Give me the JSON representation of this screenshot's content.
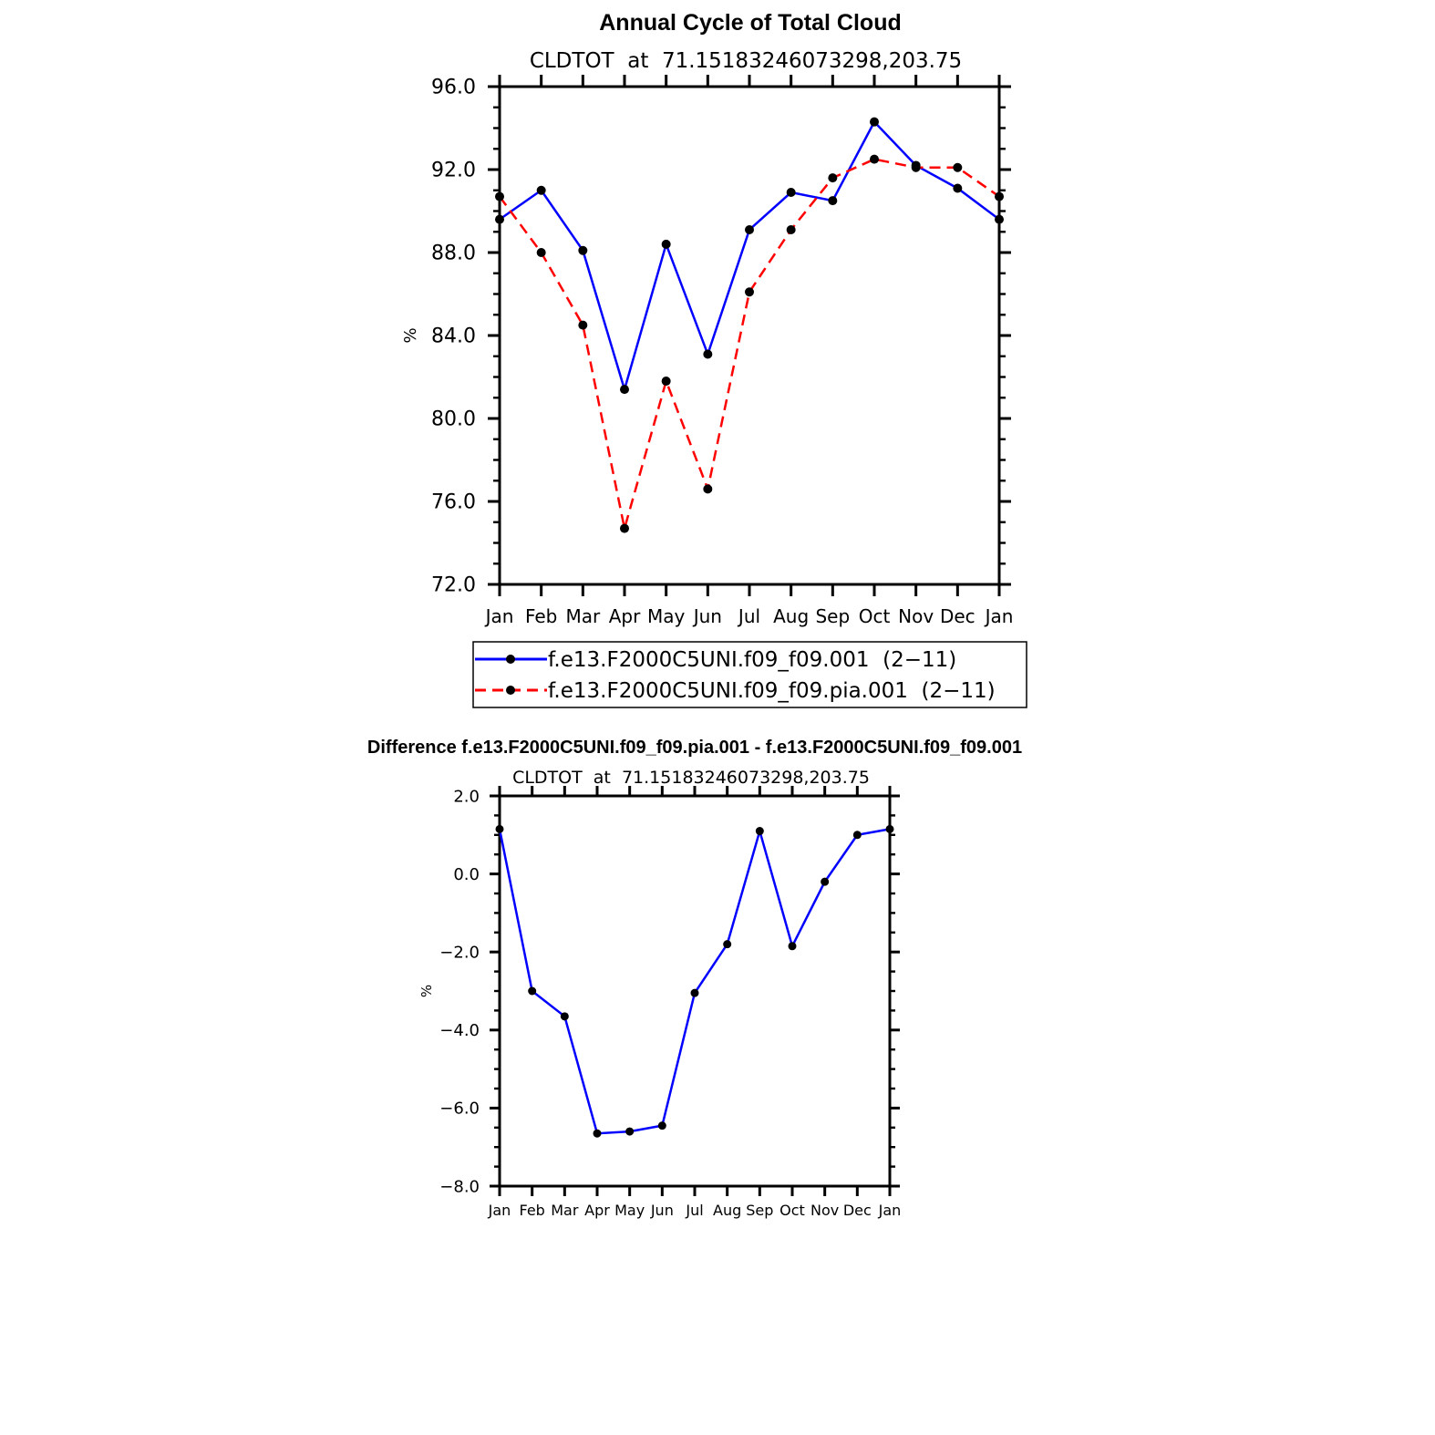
{
  "chart_data": [
    {
      "type": "line",
      "title": "Annual Cycle of Total Cloud",
      "subtitle": "CLDTOT  at  71.15183246073298,203.75",
      "xlabel": "",
      "ylabel": "%",
      "categories": [
        "Jan",
        "Feb",
        "Mar",
        "Apr",
        "May",
        "Jun",
        "Jul",
        "Aug",
        "Sep",
        "Oct",
        "Nov",
        "Dec",
        "Jan"
      ],
      "ylim": [
        72.0,
        96.0
      ],
      "yticks": [
        72.0,
        76.0,
        80.0,
        84.0,
        88.0,
        92.0,
        96.0
      ],
      "ytick_labels": [
        "72.0",
        "76.0",
        "80.0",
        "84.0",
        "88.0",
        "92.0",
        "96.0"
      ],
      "legend_position": "bottom",
      "series": [
        {
          "name": "f.e13.F2000C5UNI.f09_f09.001  (2−11)",
          "color": "#0000ff",
          "dash": "solid",
          "values": [
            89.6,
            91.0,
            88.1,
            81.4,
            88.4,
            83.1,
            89.1,
            90.9,
            90.5,
            94.3,
            92.2,
            91.1,
            89.6
          ]
        },
        {
          "name": "f.e13.F2000C5UNI.f09_f09.pia.001  (2−11)",
          "color": "#ff0000",
          "dash": "dashed",
          "values": [
            90.7,
            88.0,
            84.5,
            74.7,
            81.8,
            76.6,
            86.1,
            89.1,
            91.6,
            92.5,
            92.1,
            92.1,
            90.7
          ]
        }
      ]
    },
    {
      "type": "line",
      "title": "Difference f.e13.F2000C5UNI.f09_f09.pia.001 - f.e13.F2000C5UNI.f09_f09.001",
      "subtitle": "CLDTOT  at  71.15183246073298,203.75",
      "xlabel": "",
      "ylabel": "%",
      "categories": [
        "Jan",
        "Feb",
        "Mar",
        "Apr",
        "May",
        "Jun",
        "Jul",
        "Aug",
        "Sep",
        "Oct",
        "Nov",
        "Dec",
        "Jan"
      ],
      "ylim": [
        -8.0,
        2.0
      ],
      "yticks": [
        -8.0,
        -6.0,
        -4.0,
        -2.0,
        0.0,
        2.0
      ],
      "ytick_labels": [
        "−8.0",
        "−6.0",
        "−4.0",
        "−2.0",
        "0.0",
        "2.0"
      ],
      "series": [
        {
          "name": "Difference",
          "color": "#0000ff",
          "dash": "solid",
          "values": [
            1.15,
            -3.0,
            -3.65,
            -6.65,
            -6.6,
            -6.45,
            -3.05,
            -1.8,
            1.1,
            -1.85,
            -0.2,
            1.0,
            1.15
          ]
        }
      ]
    }
  ]
}
